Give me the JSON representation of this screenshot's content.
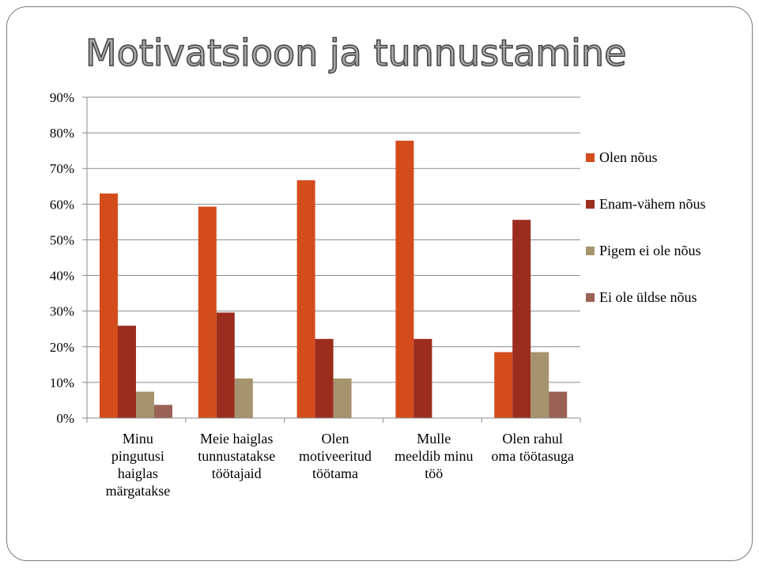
{
  "slide": {
    "title": "Motivatsioon ja tunnustamine"
  },
  "chart_data": {
    "type": "bar",
    "title": "Motivatsioon ja tunnustamine",
    "xlabel": "",
    "ylabel": "",
    "ylim": [
      0,
      90
    ],
    "yticks": [
      "0%",
      "10%",
      "20%",
      "30%",
      "40%",
      "50%",
      "60%",
      "70%",
      "80%",
      "90%"
    ],
    "grid": true,
    "legend_position": "right",
    "categories": [
      [
        "Minu",
        "pingutusi",
        "haiglas",
        "märgatakse"
      ],
      [
        "Meie haiglas",
        "tunnustatakse",
        "töötajaid"
      ],
      [
        "Olen",
        "motiveeritud",
        "töötama"
      ],
      [
        "Mulle",
        "meeldib minu",
        "töö"
      ],
      [
        "Olen rahul",
        "oma töötasuga"
      ]
    ],
    "series": [
      {
        "name": "Olen nõus",
        "color": "#d34c1c",
        "values": [
          63,
          59.3,
          66.7,
          77.8,
          18.5
        ]
      },
      {
        "name": "Enam-vähem nõus",
        "color": "#9b2d1f",
        "values": [
          25.9,
          29.6,
          22.2,
          22.2,
          55.6
        ]
      },
      {
        "name": "Pigem ei ole nõus",
        "color": "#a6946f",
        "values": [
          7.4,
          11.1,
          11.1,
          0,
          18.5
        ]
      },
      {
        "name": "Ei ole üldse nõus",
        "color": "#9a6254",
        "values": [
          3.7,
          0,
          0,
          0,
          7.4
        ]
      }
    ]
  }
}
